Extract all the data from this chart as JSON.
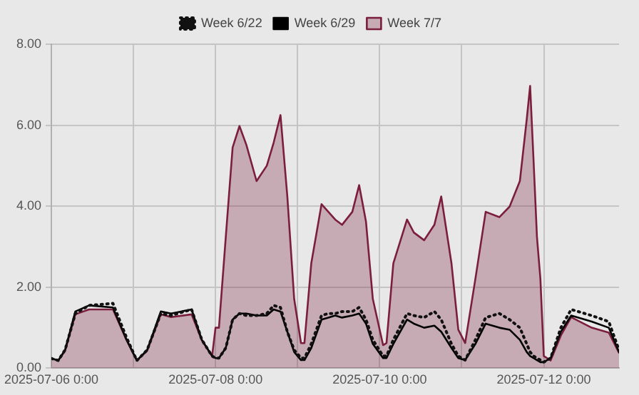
{
  "chart_data": {
    "type": "line",
    "x": [
      "2025-07-06T00:00",
      "2025-07-06T02:00",
      "2025-07-06T04:00",
      "2025-07-06T07:00",
      "2025-07-06T11:00",
      "2025-07-06T18:00",
      "2025-07-06T22:00",
      "2025-07-07T01:00",
      "2025-07-07T04:00",
      "2025-07-07T08:00",
      "2025-07-07T11:00",
      "2025-07-07T17:00",
      "2025-07-07T20:00",
      "2025-07-07T23:00",
      "2025-07-08T00:00",
      "2025-07-08T01:00",
      "2025-07-08T03:00",
      "2025-07-08T05:00",
      "2025-07-08T07:00",
      "2025-07-08T09:00",
      "2025-07-08T12:00",
      "2025-07-08T15:00",
      "2025-07-08T17:00",
      "2025-07-08T19:00",
      "2025-07-08T21:00",
      "2025-07-08T23:00",
      "2025-07-09T01:00",
      "2025-07-09T02:00",
      "2025-07-09T04:00",
      "2025-07-09T07:00",
      "2025-07-09T09:00",
      "2025-07-09T11:00",
      "2025-07-09T13:00",
      "2025-07-09T16:00",
      "2025-07-09T18:00",
      "2025-07-09T20:00",
      "2025-07-09T22:00",
      "2025-07-10T01:00",
      "2025-07-10T02:00",
      "2025-07-10T04:00",
      "2025-07-10T08:00",
      "2025-07-10T10:00",
      "2025-07-10T13:00",
      "2025-07-10T16:00",
      "2025-07-10T18:00",
      "2025-07-10T21:00",
      "2025-07-10T23:00",
      "2025-07-11T01:00",
      "2025-07-11T04:00",
      "2025-07-11T07:00",
      "2025-07-11T11:00",
      "2025-07-11T14:00",
      "2025-07-11T17:00",
      "2025-07-11T19:00",
      "2025-07-11T20:00",
      "2025-07-11T21:00",
      "2025-07-11T22:00",
      "2025-07-11T23:00",
      "2025-07-12T00:00",
      "2025-07-12T02:00",
      "2025-07-12T05:00",
      "2025-07-12T08:00",
      "2025-07-12T14:00",
      "2025-07-12T19:00",
      "2025-07-12T22:00"
    ],
    "series": [
      {
        "name": "Week 6/22",
        "color": "#111111",
        "type": "line",
        "line_style": "dotted",
        "values": [
          0.24,
          0.19,
          0.45,
          1.35,
          1.55,
          1.6,
          0.75,
          0.19,
          0.45,
          1.35,
          1.3,
          1.45,
          0.7,
          0.3,
          0.25,
          0.25,
          0.5,
          1.2,
          1.35,
          1.3,
          1.3,
          1.35,
          1.55,
          1.5,
          0.9,
          0.45,
          0.25,
          0.25,
          0.6,
          1.3,
          1.35,
          1.35,
          1.4,
          1.4,
          1.5,
          1.2,
          0.7,
          0.3,
          0.3,
          0.7,
          1.35,
          1.3,
          1.25,
          1.4,
          1.2,
          0.6,
          0.3,
          0.2,
          0.7,
          1.25,
          1.35,
          1.2,
          1.0,
          0.6,
          0.4,
          0.3,
          0.25,
          0.2,
          0.15,
          0.25,
          1.0,
          1.45,
          1.3,
          1.15,
          0.45
        ]
      },
      {
        "name": "Week 6/29",
        "color": "#000000",
        "type": "line",
        "line_style": "solid",
        "values": [
          0.24,
          0.19,
          0.45,
          1.4,
          1.55,
          1.5,
          0.7,
          0.19,
          0.45,
          1.4,
          1.35,
          1.45,
          0.7,
          0.3,
          0.25,
          0.25,
          0.5,
          1.2,
          1.35,
          1.35,
          1.3,
          1.3,
          1.45,
          1.4,
          0.9,
          0.4,
          0.2,
          0.2,
          0.5,
          1.2,
          1.25,
          1.3,
          1.25,
          1.3,
          1.35,
          1.1,
          0.6,
          0.25,
          0.25,
          0.6,
          1.2,
          1.1,
          1.0,
          1.05,
          0.9,
          0.5,
          0.25,
          0.2,
          0.6,
          1.1,
          1.0,
          0.95,
          0.7,
          0.4,
          0.3,
          0.25,
          0.2,
          0.15,
          0.15,
          0.25,
          0.9,
          1.3,
          1.15,
          1.0,
          0.4
        ]
      },
      {
        "name": "Week 7/7",
        "color": "#7b1e3c",
        "type": "area",
        "line_style": "solid",
        "values": [
          0.24,
          0.19,
          0.43,
          1.33,
          1.45,
          1.45,
          0.69,
          0.19,
          0.43,
          1.33,
          1.26,
          1.33,
          0.69,
          0.3,
          1.0,
          1.0,
          3.24,
          5.45,
          5.98,
          5.52,
          4.62,
          5.0,
          5.57,
          6.25,
          4.24,
          1.71,
          0.62,
          0.62,
          2.59,
          4.05,
          3.86,
          3.67,
          3.54,
          3.86,
          4.52,
          3.62,
          1.71,
          0.57,
          0.62,
          2.59,
          3.67,
          3.35,
          3.16,
          3.54,
          4.24,
          2.59,
          0.95,
          0.62,
          2.21,
          3.86,
          3.73,
          3.99,
          4.62,
          6.14,
          6.97,
          5.14,
          3.24,
          2.21,
          0.3,
          0.19,
          0.81,
          1.26,
          1.0,
          0.88,
          0.38
        ]
      }
    ],
    "xlim": [
      "2025-07-06T00:00",
      "2025-07-12T22:00"
    ],
    "xticks": [
      {
        "value": "2025-07-06T00:00",
        "label": "2025-07-06 0:00"
      },
      {
        "value": "2025-07-07T00:00",
        "label": null
      },
      {
        "value": "2025-07-08T00:00",
        "label": "2025-07-08 0:00"
      },
      {
        "value": "2025-07-09T00:00",
        "label": null
      },
      {
        "value": "2025-07-10T00:00",
        "label": "2025-07-10 0:00"
      },
      {
        "value": "2025-07-11T00:00",
        "label": null
      },
      {
        "value": "2025-07-12T00:00",
        "label": "2025-07-12 0:00"
      }
    ],
    "ylim": [
      0,
      8
    ],
    "yticks": [
      {
        "value": 0,
        "label": "0.00"
      },
      {
        "value": 2,
        "label": "2.00"
      },
      {
        "value": 4,
        "label": "4.00"
      },
      {
        "value": 6,
        "label": "6.00"
      },
      {
        "value": 8,
        "label": "8.00"
      }
    ],
    "grid": true,
    "legend": "top",
    "marker": "none"
  }
}
